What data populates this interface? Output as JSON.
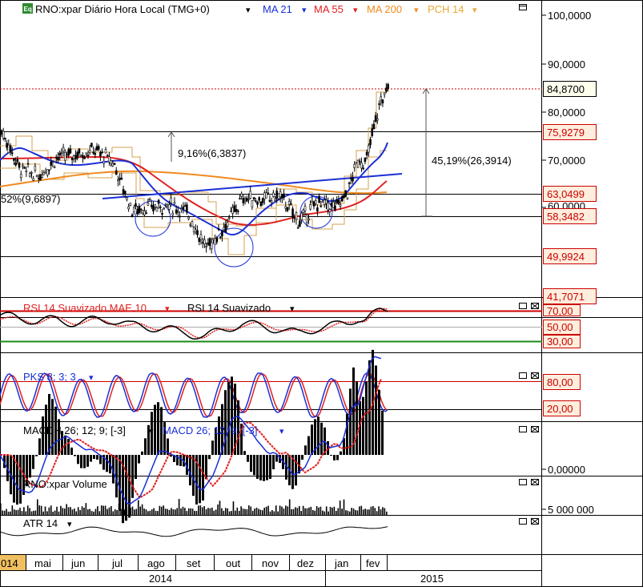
{
  "header": {
    "eq_badge": "Eq",
    "symbol_title": "RNO:xpar Diário Hora Local (TMG+0)",
    "studies": [
      {
        "label": "MA 21",
        "color": "#1a2fd6"
      },
      {
        "label": "MA 55",
        "color": "#e02020"
      },
      {
        "label": "MA 200",
        "color": "#f08a20"
      },
      {
        "label": "PCH 14",
        "color": "#e8a838"
      }
    ]
  },
  "colors": {
    "candle": "#000000",
    "ma21": "#1a2fd6",
    "ma55": "#e02020",
    "ma200": "#f08a20",
    "pch": "#d4a050",
    "trendline": "#1a2fd6",
    "level_label_text": "#cc0000",
    "level_label_bg": "#ffeedd",
    "last_price_bg": "#ffffee",
    "rsi_black": "#000000",
    "rsi_red": "#e02020",
    "rsi_30_line": "#1a8a1a",
    "stoch_blue": "#1a2fd6",
    "stoch_red": "#e02020",
    "macd_blue": "#1a2fd6",
    "macd_red": "#e02020",
    "volume": "#000000",
    "atr": "#000000"
  },
  "price_axis": {
    "ticks": [
      "100,0000",
      "90,0000",
      "80,0000",
      "70,0000",
      "60,0000"
    ],
    "ylim": [
      45.0,
      105.0
    ],
    "last_price": "84,8700",
    "levels": [
      "75,9279",
      "63,0499",
      "58,3482",
      "49,9924",
      "41,7071"
    ]
  },
  "annotations": {
    "measure_small": "9,16%(6,3837)",
    "measure_large": "45,19%(26,3914)",
    "measure_left": "52%(9,6897)"
  },
  "rsi_panel": {
    "legend_1": "RSI 14 Suavizado MAE 10",
    "legend_2": "RSI 14 Suavizado",
    "axis_labels": [
      "70,00",
      "50,00",
      "30,00"
    ]
  },
  "stoch_panel": {
    "legend": "PKS 8; 3; 3",
    "axis_labels": [
      "80,00",
      "20,00"
    ]
  },
  "macd_panel": {
    "legend_1": "MACDH 26; 12; 9; [-3]",
    "legend_2": "MACD 26; 12; 9; [-3]",
    "axis_label": "0,00000"
  },
  "volume_panel": {
    "legend": "RNO:xpar Volume",
    "axis_label": "5 000 000"
  },
  "atr_panel": {
    "legend": "ATR 14"
  },
  "time_axis": {
    "months": [
      "014",
      "mai",
      "jun",
      "jul",
      "ago",
      "set",
      "out",
      "nov",
      "dez",
      "jan",
      "fev"
    ],
    "years": [
      "2014",
      "2015"
    ]
  },
  "panel_controls": {
    "minimize": "▭",
    "close": "☒"
  },
  "chart_data": {
    "type": "line",
    "x_range": [
      "abr 2014",
      "fev 2015"
    ],
    "price_series_keypoints": {
      "x_month_index": [
        0,
        0.5,
        1.0,
        1.5,
        2.0,
        2.5,
        3.0,
        3.5,
        4.0,
        4.5,
        5.0,
        5.5,
        6.0,
        6.5,
        7.0,
        7.5,
        8.0,
        8.5,
        9.0,
        9.3,
        9.6,
        9.8,
        10.0,
        10.2,
        10.4
      ],
      "close": [
        75.9,
        68.0,
        66.5,
        70.5,
        71.0,
        72.0,
        69.5,
        59.5,
        60.0,
        60.5,
        59.0,
        51.5,
        56.0,
        62.0,
        61.5,
        62.5,
        57.0,
        61.0,
        60.0,
        63.0,
        70.0,
        69.0,
        76.0,
        82.0,
        84.87
      ]
    },
    "levels": [
      75.9279,
      63.0499,
      58.3482,
      49.9924,
      41.7071
    ],
    "last_price": 84.87,
    "rsi_levels": [
      70,
      50,
      30
    ],
    "stoch_levels": [
      80,
      20
    ]
  }
}
